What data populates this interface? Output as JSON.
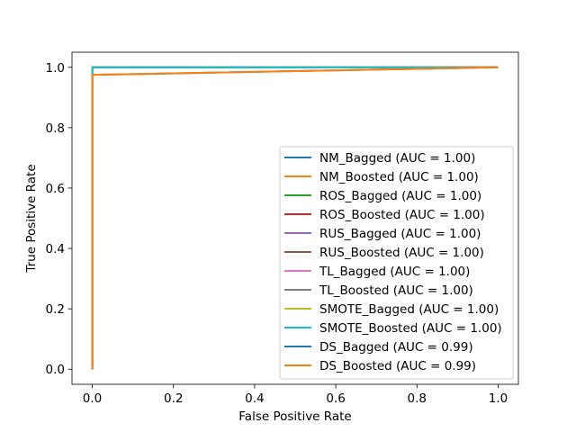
{
  "chart_data": {
    "type": "line",
    "title": "",
    "xlabel": "False Positive Rate",
    "ylabel": "True Positive Rate",
    "xlim": [
      -0.05,
      1.05
    ],
    "ylim": [
      -0.05,
      1.05
    ],
    "xticks": [
      "0.0",
      "0.2",
      "0.4",
      "0.6",
      "0.8",
      "1.0"
    ],
    "yticks": [
      "0.0",
      "0.2",
      "0.4",
      "0.6",
      "0.8",
      "1.0"
    ],
    "grid": false,
    "legend_position": "lower right",
    "series": [
      {
        "name": "NM_Bagged (AUC = 1.00)",
        "color": "#1f77b4",
        "x": [
          0,
          0,
          1
        ],
        "y": [
          0,
          1.0,
          1.0
        ]
      },
      {
        "name": "NM_Boosted (AUC = 1.00)",
        "color": "#ff7f0e",
        "x": [
          0,
          0,
          1
        ],
        "y": [
          0,
          1.0,
          1.0
        ]
      },
      {
        "name": "ROS_Bagged (AUC = 1.00)",
        "color": "#2ca02c",
        "x": [
          0,
          0,
          1
        ],
        "y": [
          0,
          1.0,
          1.0
        ]
      },
      {
        "name": "ROS_Boosted (AUC = 1.00)",
        "color": "#d62728",
        "x": [
          0,
          0,
          1
        ],
        "y": [
          0,
          1.0,
          1.0
        ]
      },
      {
        "name": "RUS_Bagged (AUC = 1.00)",
        "color": "#9467bd",
        "x": [
          0,
          0,
          1
        ],
        "y": [
          0,
          1.0,
          1.0
        ]
      },
      {
        "name": "RUS_Boosted (AUC = 1.00)",
        "color": "#8c564b",
        "x": [
          0,
          0,
          1
        ],
        "y": [
          0,
          1.0,
          1.0
        ]
      },
      {
        "name": "TL_Bagged (AUC = 1.00)",
        "color": "#e377c2",
        "x": [
          0,
          0,
          1
        ],
        "y": [
          0,
          1.0,
          1.0
        ]
      },
      {
        "name": "TL_Boosted (AUC = 1.00)",
        "color": "#7f7f7f",
        "x": [
          0,
          0,
          1
        ],
        "y": [
          0,
          1.0,
          1.0
        ]
      },
      {
        "name": "SMOTE_Bagged (AUC = 1.00)",
        "color": "#bcbd22",
        "x": [
          0,
          0,
          1
        ],
        "y": [
          0,
          1.0,
          1.0
        ]
      },
      {
        "name": "SMOTE_Boosted (AUC = 1.00)",
        "color": "#17becf",
        "x": [
          0,
          0,
          1
        ],
        "y": [
          0,
          1.0,
          1.0
        ]
      },
      {
        "name": "DS_Bagged (AUC = 0.99)",
        "color": "#1f77b4",
        "x": [
          0,
          0,
          1
        ],
        "y": [
          0,
          0.975,
          1.0
        ]
      },
      {
        "name": "DS_Boosted (AUC = 0.99)",
        "color": "#ff7f0e",
        "x": [
          0,
          0,
          1
        ],
        "y": [
          0,
          0.975,
          1.0
        ]
      }
    ]
  }
}
